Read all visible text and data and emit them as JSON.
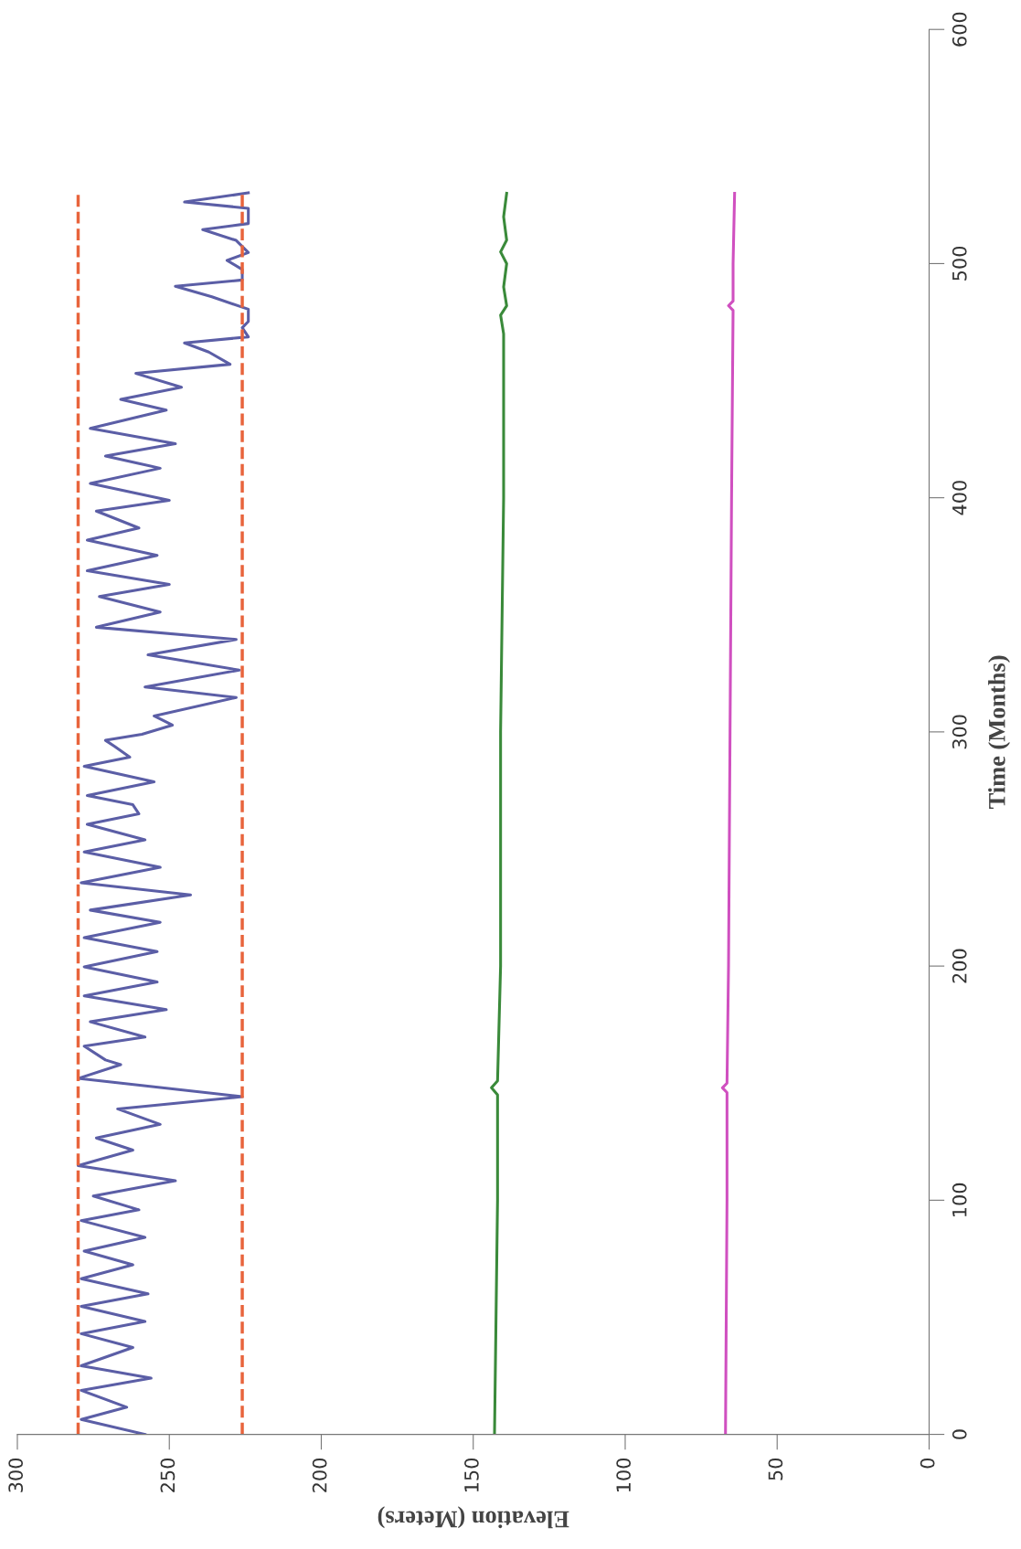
{
  "chart_data": {
    "type": "line",
    "xlabel": "Elevation (Meters)",
    "ylabel": "Time (Months)",
    "xlim": [
      300,
      0
    ],
    "xticks": [
      300,
      250,
      200,
      150,
      100,
      50,
      0
    ],
    "ylim": [
      0,
      600
    ],
    "yticks": [
      0,
      100,
      200,
      300,
      400,
      500,
      600
    ],
    "grid": false,
    "series": [
      {
        "color": "#5b5ea6",
        "line_style": "solid",
        "values": [
          0,
          6.4,
          11.6,
          18.8,
          24,
          29.3,
          37.1,
          43,
          48.2,
          54.7,
          60,
          66.5,
          72.4,
          78.3,
          84.1,
          91.3,
          95.9,
          101.8,
          108.3,
          114.8,
          121.4,
          126.6,
          132.4,
          139,
          144.2,
          152,
          157.9,
          159.9,
          165.8,
          169.7,
          176.2,
          181.4,
          187.3,
          193.2,
          199.7,
          206.2,
          212.1,
          218.7,
          223.9,
          230.4,
          235.6,
          242.2,
          248.7,
          253.9,
          260.5,
          265,
          268.9,
          272.8,
          278.7,
          285.3,
          289.2,
          293.8,
          296.4,
          299,
          302.9,
          306.8,
          314.7,
          319.2,
          326.4,
          332.9,
          339.5,
          344.7,
          351.2,
          357.8,
          363,
          368.8,
          375.4,
          381.9,
          387.1,
          394.3,
          398.9,
          406.1,
          412.6,
          417.8,
          423.1,
          429.6,
          437.4,
          442,
          447.2,
          453.1,
          457,
          462.2,
          466.1,
          468.7,
          472.6,
          475.3,
          480.5,
          485.8,
          490.3,
          493,
          497.5,
          501.4,
          504.7,
          509.9,
          514.5,
          517.1,
          523.6,
          526.3,
          530.2
        ],
        "x": [
          258,
          279,
          264,
          279,
          256,
          279,
          262,
          279,
          258,
          279,
          257,
          279,
          262,
          278,
          258,
          279,
          260,
          275,
          248,
          280,
          262,
          274,
          253,
          267,
          226,
          280,
          266,
          271,
          278,
          258,
          276,
          251,
          278,
          254,
          278,
          254,
          278,
          253,
          276,
          243,
          279,
          253,
          278,
          258,
          277,
          260,
          262,
          277,
          255,
          278,
          263,
          268,
          271,
          259,
          249,
          255,
          228,
          258,
          227,
          257,
          228,
          274,
          253,
          273,
          250,
          277,
          254,
          277,
          260,
          274,
          250,
          276,
          253,
          271,
          248,
          276,
          251,
          266,
          246,
          261,
          230,
          237,
          245,
          224,
          226,
          224,
          224,
          236,
          248,
          226,
          226,
          231,
          224,
          228,
          239,
          224,
          224,
          245,
          224
        ]
      },
      {
        "color": "#e8643c",
        "line_style": "dashed",
        "values": [
          0,
          531
        ],
        "x": [
          280,
          280
        ]
      },
      {
        "color": "#e8643c",
        "line_style": "dashed",
        "values": [
          0,
          531
        ],
        "x": [
          226,
          226
        ]
      },
      {
        "color": "#3a8a3a",
        "line_style": "solid",
        "values": [
          0,
          100,
          145,
          148,
          151,
          200,
          300,
          400,
          470,
          478,
          482,
          490,
          500,
          505,
          510,
          520,
          530
        ],
        "x": [
          143,
          142,
          142,
          144,
          142,
          141,
          141,
          140,
          140,
          141,
          139,
          140,
          139,
          141,
          139,
          140,
          139
        ]
      },
      {
        "color": "#d050c0",
        "line_style": "solid",
        "values": [
          0,
          100,
          146,
          148,
          150,
          200,
          300,
          400,
          480,
          482,
          484,
          500,
          530
        ],
        "x": [
          67,
          66.5,
          66.5,
          68,
          66.5,
          66,
          65.5,
          65,
          64.5,
          66,
          64.5,
          64.5,
          64
        ]
      }
    ]
  }
}
